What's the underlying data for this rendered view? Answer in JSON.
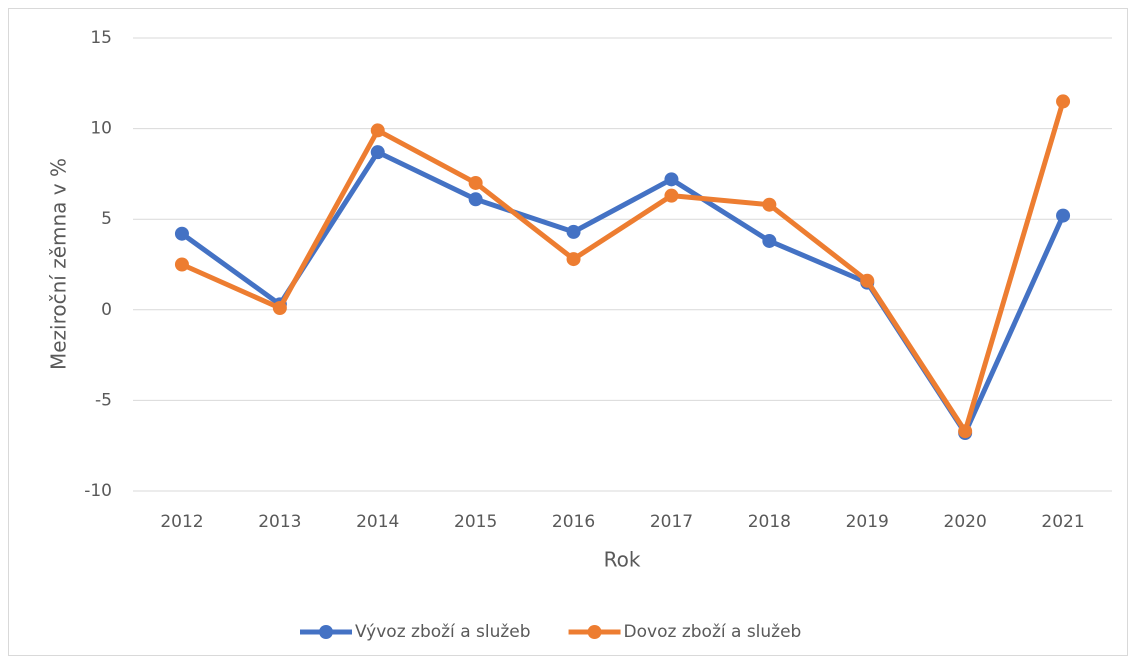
{
  "chart_data": {
    "type": "line",
    "categories": [
      "2012",
      "2013",
      "2014",
      "2015",
      "2016",
      "2017",
      "2018",
      "2019",
      "2020",
      "2021"
    ],
    "series": [
      {
        "name": "Vývoz zboží a služeb",
        "color": "#4472c4",
        "values": [
          4.2,
          0.3,
          8.7,
          6.1,
          4.3,
          7.2,
          3.8,
          1.5,
          -6.8,
          5.2
        ]
      },
      {
        "name": "Dovoz zboží a služeb",
        "color": "#ed7d31",
        "values": [
          2.5,
          0.1,
          9.9,
          7.0,
          2.8,
          6.3,
          5.8,
          1.6,
          -6.7,
          11.5
        ]
      }
    ],
    "ylim": [
      -10,
      15
    ],
    "yticks": [
      -10,
      -5,
      0,
      5,
      10,
      15
    ],
    "grid": true,
    "ylabel": "Meziroční zěmna v %",
    "xlabel": "Rok",
    "legend": "bottom"
  }
}
